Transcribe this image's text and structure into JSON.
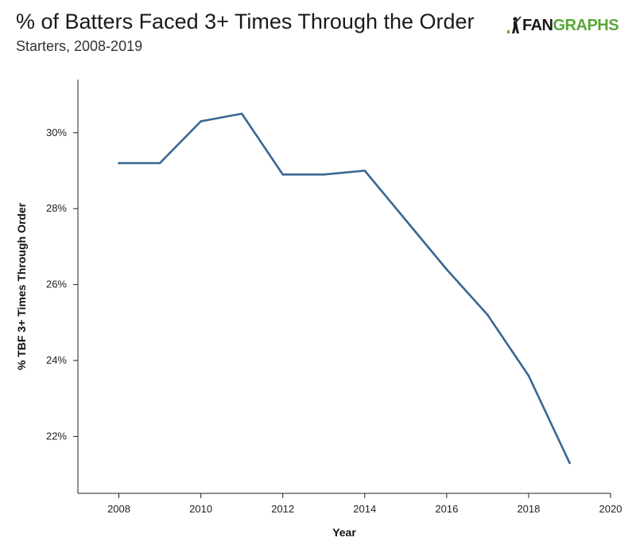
{
  "header": {
    "title": "% of Batters Faced 3+ Times Through the Order",
    "subtitle": "Starters, 2008-2019"
  },
  "logo": {
    "part1": "FAN",
    "part2": "GRAPHS",
    "accent_color": "#5aa63a"
  },
  "chart_data": {
    "type": "line",
    "title": "% of Batters Faced 3+ Times Through the Order",
    "subtitle": "Starters, 2008-2019",
    "xlabel": "Year",
    "ylabel": "% TBF 3+ Times Through Order",
    "xlim": [
      2007,
      2020
    ],
    "ylim": [
      20.5,
      31.4
    ],
    "x_ticks": [
      2008,
      2010,
      2012,
      2014,
      2016,
      2018,
      2020
    ],
    "x_tick_labels": [
      "2008",
      "2010",
      "2012",
      "2014",
      "2016",
      "2018",
      "2020"
    ],
    "y_ticks": [
      22,
      24,
      26,
      28,
      30
    ],
    "y_tick_labels": [
      "22%",
      "24%",
      "26%",
      "28%",
      "30%"
    ],
    "grid": false,
    "line_color": "#3a6693",
    "series": [
      {
        "x": [
          2008,
          2009,
          2010,
          2011,
          2012,
          2013,
          2014,
          2015,
          2016,
          2017,
          2018,
          2019
        ],
        "values": [
          29.2,
          29.2,
          30.3,
          30.5,
          28.9,
          28.9,
          29.0,
          27.7,
          26.4,
          25.2,
          23.6,
          21.3
        ]
      }
    ]
  }
}
